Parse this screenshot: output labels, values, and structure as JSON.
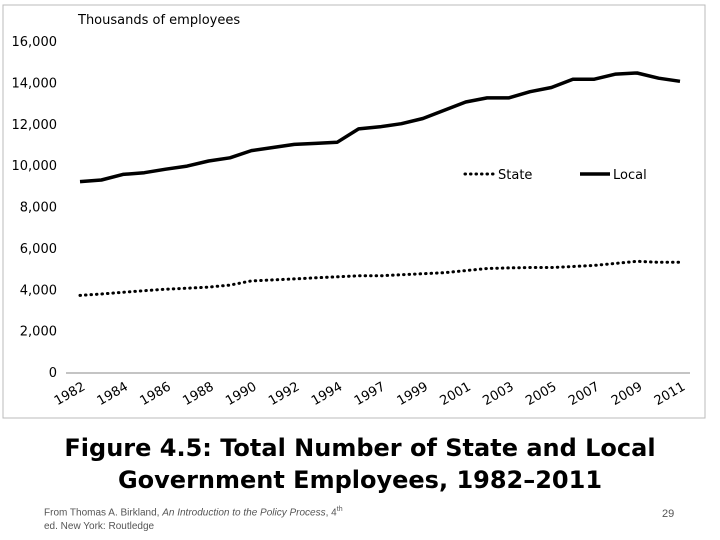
{
  "chart_data": {
    "type": "line",
    "y_axis_title": "Thousands of employees",
    "categories": [
      "1982",
      null,
      "1984",
      null,
      "1986",
      null,
      "1988",
      null,
      "1990",
      null,
      "1992",
      null,
      "1994",
      null,
      "1997",
      null,
      "1999",
      null,
      "2001",
      null,
      "2003",
      null,
      "2005",
      null,
      "2007",
      null,
      "2009",
      null,
      "2011"
    ],
    "series": [
      {
        "name": "State",
        "color": "#000000",
        "line_style": "dotted",
        "values": [
          3750,
          3820,
          3900,
          3980,
          4050,
          4100,
          4150,
          4250,
          4450,
          4500,
          4550,
          4600,
          4650,
          4700,
          4700,
          4750,
          4800,
          4850,
          4950,
          5050,
          5080,
          5100,
          5100,
          5150,
          5200,
          5300,
          5400,
          5350,
          5350
        ]
      },
      {
        "name": "Local",
        "color": "#000000",
        "line_style": "solid",
        "values": [
          9250,
          9330,
          9600,
          9680,
          9850,
          10000,
          10250,
          10400,
          10750,
          10900,
          11050,
          11100,
          11150,
          11800,
          11900,
          12050,
          12300,
          12700,
          13100,
          13300,
          13300,
          13600,
          13800,
          14200,
          14200,
          14450,
          14500,
          14250,
          14100
        ]
      }
    ],
    "ylim": [
      0,
      16000
    ],
    "yticks": [
      0,
      {
        "value": 2000,
        "label": "2,000"
      },
      {
        "value": 4000,
        "label": "4,000"
      },
      {
        "value": 6000,
        "label": "6,000"
      },
      {
        "value": 8000,
        "label": "8,000"
      },
      {
        "value": 10000,
        "label": "10,000"
      },
      {
        "value": 12000,
        "label": "12,000"
      },
      {
        "value": 14000,
        "label": "14,000"
      },
      {
        "value": 16000,
        "label": "16,000"
      }
    ],
    "grid": false,
    "legend": "right"
  },
  "slide": {
    "caption": "Figure 4.5: Total Number of State and Local Government Employees, 1982–2011",
    "source": [
      {
        "text": "From Thomas A. Birkland, ",
        "style": "normal"
      },
      {
        "text": "An Introduction to the Policy Process",
        "style": "italic"
      },
      {
        "text": ", 4",
        "style": "normal"
      },
      {
        "text": "th",
        "style": "superscript"
      },
      {
        "text": " ed. New York: Routledge",
        "style": "normal"
      }
    ],
    "page_number": "29"
  }
}
